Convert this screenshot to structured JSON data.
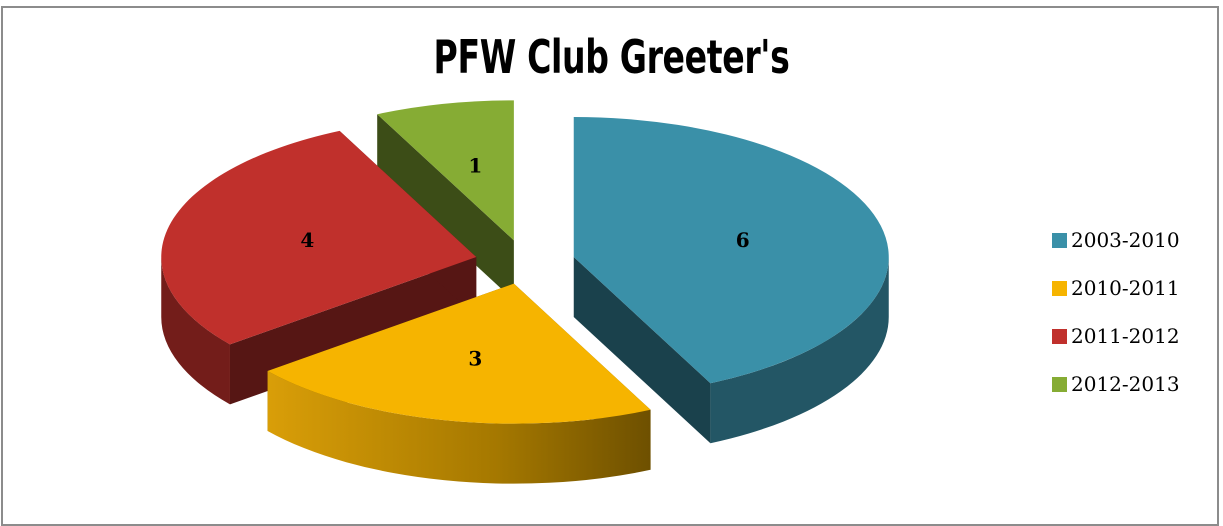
{
  "chart_data": {
    "type": "pie",
    "title": "PFW Club Greeter's",
    "categories": [
      "2003-2010",
      "2010-2011",
      "2011-2012",
      "2012-2013"
    ],
    "values": [
      6,
      3,
      4,
      1
    ],
    "colors": [
      "#3a90a8",
      "#f6b400",
      "#c0302c",
      "#86ac34"
    ],
    "data_labels": [
      "6",
      "3",
      "4",
      "1"
    ],
    "legend_placement": "right",
    "style": "3d-exploded"
  }
}
